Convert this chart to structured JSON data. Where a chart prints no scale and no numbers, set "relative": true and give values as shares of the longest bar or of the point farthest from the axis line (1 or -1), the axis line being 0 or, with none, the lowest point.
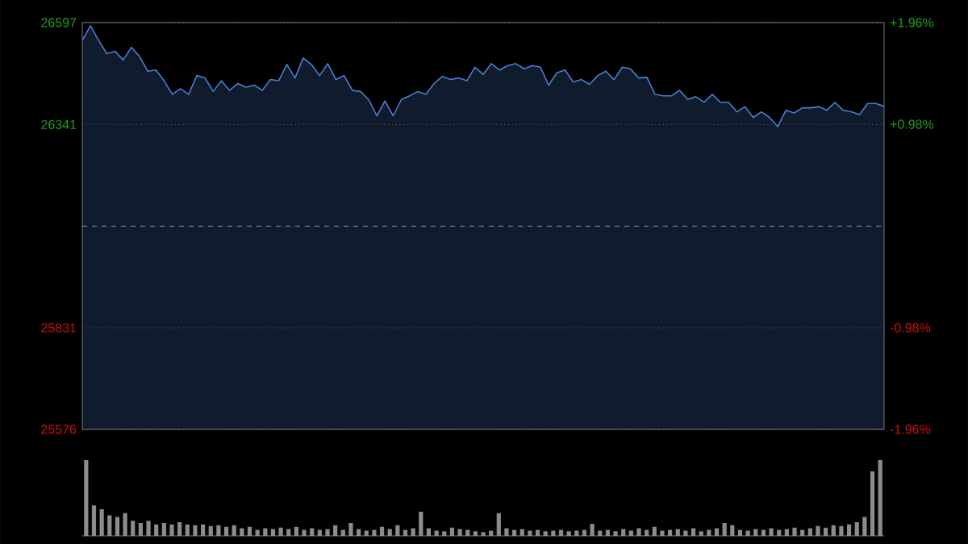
{
  "chart_data": [
    {
      "type": "area",
      "color": "#4a7fd0",
      "categories": [
        null,
        null,
        null,
        null,
        null,
        null,
        null,
        null,
        null,
        null,
        null,
        null,
        null,
        null,
        null,
        null,
        null,
        null,
        null,
        null,
        null,
        null,
        null,
        null,
        null,
        null,
        null,
        null,
        null,
        null,
        null,
        null,
        null,
        null,
        null,
        null,
        null,
        null,
        null,
        null,
        null,
        null,
        null,
        null,
        null,
        null,
        null,
        null,
        null,
        null,
        null,
        null,
        null,
        null,
        null,
        null,
        null,
        null,
        null,
        null,
        null,
        null,
        null,
        null,
        null,
        null,
        null,
        null,
        null,
        null,
        null,
        null,
        null,
        null,
        null,
        null,
        null,
        null,
        null,
        null,
        null,
        null,
        null,
        null,
        null,
        null,
        null,
        null,
        null,
        null,
        null,
        null,
        null,
        null,
        null,
        null,
        null,
        null,
        null
      ],
      "values": [
        26552,
        26589,
        26552,
        26519,
        26525,
        26503,
        26535,
        26512,
        26475,
        26478,
        26451,
        26417,
        26431,
        26417,
        26464,
        26458,
        26424,
        26451,
        26427,
        26444,
        26435,
        26440,
        26427,
        26454,
        26451,
        26492,
        26458,
        26508,
        26492,
        26464,
        26494,
        26454,
        26464,
        26427,
        26424,
        26404,
        26363,
        26400,
        26363,
        26404,
        26413,
        26424,
        26417,
        26444,
        26462,
        26454,
        26458,
        26451,
        26485,
        26467,
        26494,
        26478,
        26489,
        26494,
        26481,
        26489,
        26485,
        26440,
        26471,
        26478,
        26448,
        26454,
        26442,
        26464,
        26475,
        26454,
        26485,
        26481,
        26458,
        26460,
        26417,
        26413,
        26413,
        26427,
        26404,
        26411,
        26397,
        26417,
        26397,
        26397,
        26373,
        26386,
        26359,
        26373,
        26359,
        26336,
        26377,
        26370,
        26383,
        26383,
        26386,
        26377,
        26397,
        26377,
        26373,
        26366,
        26394,
        26394,
        26387
      ],
      "ylim": [
        25576,
        26597
      ],
      "yticks": [
        {
          "value": 25576,
          "label": "25576"
        },
        {
          "value": 25831,
          "label": "25831"
        },
        {
          "value": 26341,
          "label": "26341"
        },
        {
          "value": 26597,
          "label": "26597"
        }
      ],
      "y2lim": [
        -1.96,
        1.96
      ],
      "y2ticks": [
        {
          "value": -1.96,
          "label": "-1.96%"
        },
        {
          "value": -0.98,
          "label": "-0.98%"
        },
        {
          "value": 0.98,
          "label": "+0.98%"
        },
        {
          "value": 1.96,
          "label": "+1.96%"
        }
      ],
      "grid": "y",
      "ref_lines": [
        {
          "axis": "y",
          "value": 26086,
          "line_style": "dashed",
          "color": "#7a8aa0"
        }
      ]
    },
    {
      "type": "bar",
      "relative": true,
      "color": "#8c8c8c",
      "categories": [
        null,
        null,
        null,
        null,
        null,
        null,
        null,
        null,
        null,
        null,
        null,
        null,
        null,
        null,
        null,
        null,
        null,
        null,
        null,
        null,
        null,
        null,
        null,
        null,
        null,
        null,
        null,
        null,
        null,
        null,
        null,
        null,
        null,
        null,
        null,
        null,
        null,
        null,
        null,
        null,
        null,
        null,
        null,
        null,
        null,
        null,
        null,
        null,
        null,
        null,
        null,
        null,
        null,
        null,
        null,
        null,
        null,
        null,
        null,
        null,
        null,
        null,
        null,
        null,
        null,
        null,
        null,
        null,
        null,
        null,
        null,
        null,
        null,
        null,
        null,
        null,
        null,
        null,
        null,
        null,
        null,
        null,
        null,
        null,
        null,
        null,
        null,
        null,
        null,
        null,
        null,
        null,
        null,
        null,
        null,
        null,
        null,
        null,
        null,
        null,
        null,
        null,
        null
      ],
      "values": [
        1.0,
        0.4,
        0.35,
        0.27,
        0.25,
        0.3,
        0.2,
        0.17,
        0.2,
        0.15,
        0.17,
        0.15,
        0.18,
        0.15,
        0.14,
        0.15,
        0.13,
        0.14,
        0.12,
        0.14,
        0.1,
        0.12,
        0.08,
        0.1,
        0.09,
        0.11,
        0.09,
        0.12,
        0.08,
        0.1,
        0.08,
        0.09,
        0.14,
        0.08,
        0.17,
        0.09,
        0.07,
        0.08,
        0.12,
        0.09,
        0.14,
        0.08,
        0.1,
        0.32,
        0.1,
        0.07,
        0.06,
        0.11,
        0.09,
        0.08,
        0.06,
        0.05,
        0.07,
        0.3,
        0.1,
        0.08,
        0.09,
        0.07,
        0.08,
        0.06,
        0.07,
        0.08,
        0.06,
        0.07,
        0.08,
        0.16,
        0.07,
        0.08,
        0.06,
        0.09,
        0.07,
        0.1,
        0.08,
        0.12,
        0.07,
        0.08,
        0.09,
        0.07,
        0.1,
        0.06,
        0.08,
        0.1,
        0.17,
        0.14,
        0.08,
        0.07,
        0.09,
        0.08,
        0.1,
        0.08,
        0.09,
        0.11,
        0.08,
        0.1,
        0.13,
        0.11,
        0.14,
        0.13,
        0.15,
        0.18,
        0.25,
        0.85,
        1.0
      ]
    }
  ]
}
